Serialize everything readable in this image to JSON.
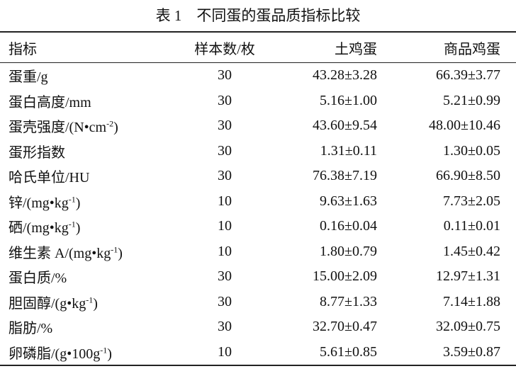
{
  "title": "表 1　不同蛋的蛋品质指标比较",
  "table": {
    "header": [
      "指标",
      "样本数/枚",
      "土鸡蛋",
      "商品鸡蛋"
    ],
    "rows": [
      [
        "蛋重/g",
        "30",
        "43.28±3.28",
        "66.39±3.77"
      ],
      [
        "蛋白高度/mm",
        "30",
        "5.16±1.00",
        "5.21±0.99"
      ],
      [
        {
          "pre": "蛋壳强度/(N•cm",
          "sup": "-2",
          "post": ")"
        },
        "30",
        "43.60±9.54",
        "48.00±10.46"
      ],
      [
        "蛋形指数",
        "30",
        "1.31±0.11",
        "1.30±0.05"
      ],
      [
        "哈氏单位/HU",
        "30",
        "76.38±7.19",
        "66.90±8.50"
      ],
      [
        {
          "pre": "锌/(mg•kg",
          "sup": "-1",
          "post": ")"
        },
        "10",
        "9.63±1.63",
        "7.73±2.05"
      ],
      [
        {
          "pre": "硒/(mg•kg",
          "sup": "-1",
          "post": ")"
        },
        "10",
        "0.16±0.04",
        "0.11±0.01"
      ],
      [
        {
          "pre": "维生素 A/(mg•kg",
          "sup": "-1",
          "post": ")"
        },
        "10",
        "1.80±0.79",
        "1.45±0.42"
      ],
      [
        "蛋白质/%",
        "30",
        "15.00±2.09",
        "12.97±1.31"
      ],
      [
        {
          "pre": "胆固醇/(g•kg",
          "sup": "-1",
          "post": ")"
        },
        "30",
        "8.77±1.33",
        "7.14±1.88"
      ],
      [
        "脂肪/%",
        "30",
        "32.70±0.47",
        "32.09±0.75"
      ],
      [
        {
          "pre": "卵磷脂/(g•100g",
          "sup": "-1",
          "post": ")"
        },
        "10",
        "5.61±0.85",
        "3.59±0.87"
      ]
    ]
  }
}
